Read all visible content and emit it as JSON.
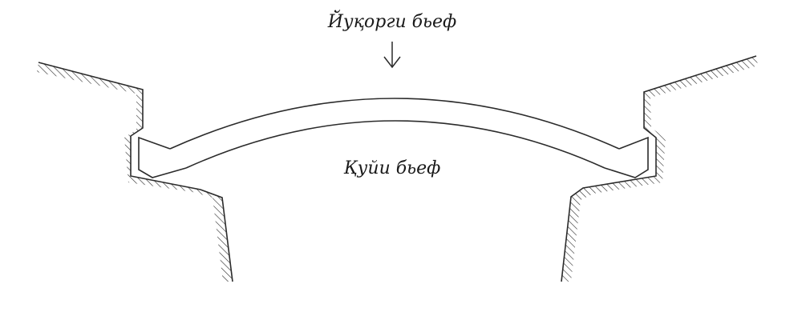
{
  "diagram": {
    "upper_label": "Йуқорги бьеф",
    "lower_label": "Қуйи бьеф",
    "flow_arrow_icon": "down-arrow-icon",
    "colors": {
      "line": "#2b2b2b",
      "background": "#ffffff"
    }
  }
}
